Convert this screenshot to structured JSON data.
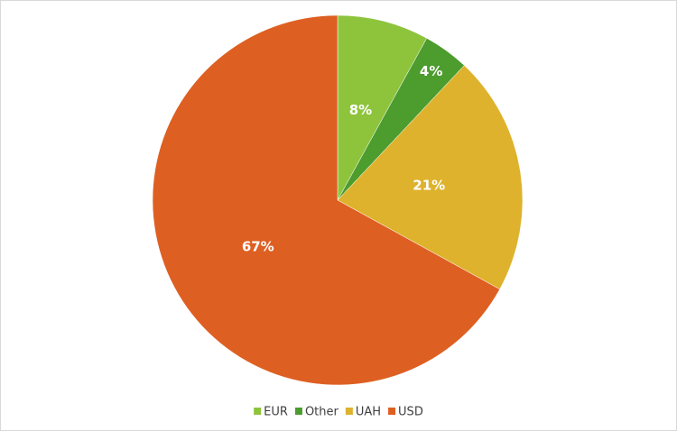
{
  "chart_data": {
    "type": "pie",
    "categories": [
      "EUR",
      "Other",
      "UAH",
      "USD"
    ],
    "values": [
      8,
      4,
      21,
      67
    ],
    "value_labels": [
      "8%",
      "4%",
      "21%",
      "67%"
    ],
    "colors": [
      "#8dc43c",
      "#4c9c2e",
      "#deb22c",
      "#de5f22"
    ],
    "legend": "bottom"
  }
}
